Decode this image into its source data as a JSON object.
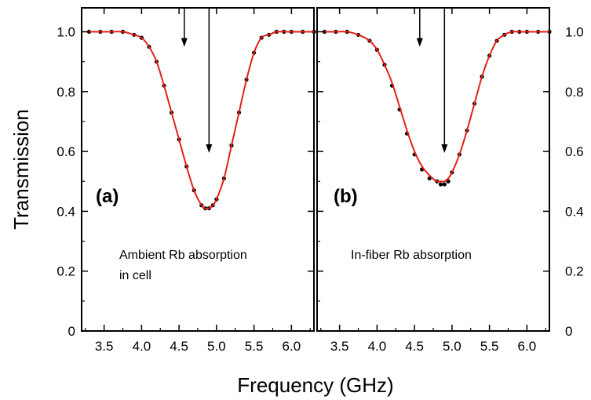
{
  "chart_data": [
    {
      "type": "scatter",
      "panel_label": "(a)",
      "annotation_lines": [
        "Ambient Rb absorption",
        "in cell"
      ],
      "xlabel": "Frequency (GHz)",
      "ylabel": "Transmission",
      "xlim": [
        3.2,
        6.3
      ],
      "ylim": [
        0,
        1.08
      ],
      "x_ticks": [
        "3.5",
        "4.0",
        "4.5",
        "5.0",
        "5.5",
        "6.0"
      ],
      "y_ticks": [
        "0",
        "0.2",
        "0.4",
        "0.6",
        "0.8",
        "1.0"
      ],
      "grid": false,
      "arrows": [
        {
          "x": 4.57,
          "y_from": 1.08,
          "y_to": 0.95
        },
        {
          "x": 4.9,
          "y_from": 1.08,
          "y_to": 0.595
        }
      ],
      "series": [
        {
          "kind": "points",
          "color": "#000000",
          "x": [
            3.3,
            3.45,
            3.6,
            3.75,
            3.9,
            4.0,
            4.1,
            4.2,
            4.3,
            4.4,
            4.5,
            4.6,
            4.7,
            4.8,
            4.85,
            4.9,
            4.95,
            5.0,
            5.1,
            5.2,
            5.3,
            5.4,
            5.5,
            5.6,
            5.7,
            5.8,
            5.9,
            6.0,
            6.15,
            6.3
          ],
          "y": [
            1.0,
            1.0,
            1.0,
            1.0,
            0.99,
            0.98,
            0.95,
            0.9,
            0.82,
            0.73,
            0.64,
            0.55,
            0.47,
            0.42,
            0.41,
            0.41,
            0.42,
            0.44,
            0.51,
            0.62,
            0.73,
            0.84,
            0.93,
            0.98,
            0.99,
            1.0,
            1.0,
            1.0,
            1.0,
            1.0
          ]
        },
        {
          "kind": "line",
          "color": "#e3201b",
          "x": [
            3.3,
            3.45,
            3.6,
            3.75,
            3.9,
            4.0,
            4.1,
            4.2,
            4.3,
            4.4,
            4.5,
            4.6,
            4.7,
            4.8,
            4.85,
            4.9,
            4.95,
            5.0,
            5.1,
            5.2,
            5.3,
            5.4,
            5.5,
            5.6,
            5.7,
            5.8,
            5.9,
            6.0,
            6.15,
            6.3
          ],
          "y": [
            1.0,
            1.0,
            1.0,
            1.0,
            0.99,
            0.98,
            0.95,
            0.9,
            0.82,
            0.73,
            0.64,
            0.55,
            0.47,
            0.42,
            0.41,
            0.41,
            0.42,
            0.44,
            0.51,
            0.62,
            0.73,
            0.84,
            0.93,
            0.98,
            0.99,
            1.0,
            1.0,
            1.0,
            1.0,
            1.0
          ]
        }
      ]
    },
    {
      "type": "scatter",
      "panel_label": "(b)",
      "annotation_lines": [
        "In-fiber Rb absorption"
      ],
      "xlabel": "Frequency (GHz)",
      "ylabel": "",
      "xlim": [
        3.2,
        6.3
      ],
      "ylim": [
        0,
        1.08
      ],
      "x_ticks": [
        "3.5",
        "4.0",
        "4.5",
        "5.0",
        "5.5",
        "6.0"
      ],
      "y_ticks": [
        "0",
        "0.2",
        "0.4",
        "0.6",
        "0.8",
        "1.0"
      ],
      "grid": false,
      "arrows": [
        {
          "x": 4.57,
          "y_from": 1.08,
          "y_to": 0.95
        },
        {
          "x": 4.9,
          "y_from": 1.08,
          "y_to": 0.595
        }
      ],
      "series": [
        {
          "kind": "points",
          "color": "#000000",
          "x": [
            3.3,
            3.45,
            3.6,
            3.75,
            3.9,
            4.0,
            4.1,
            4.2,
            4.3,
            4.4,
            4.5,
            4.6,
            4.7,
            4.8,
            4.85,
            4.9,
            4.95,
            5.0,
            5.1,
            5.2,
            5.3,
            5.4,
            5.5,
            5.6,
            5.7,
            5.8,
            5.9,
            6.0,
            6.15,
            6.3
          ],
          "y": [
            1.0,
            1.0,
            1.0,
            0.99,
            0.97,
            0.94,
            0.89,
            0.82,
            0.74,
            0.66,
            0.59,
            0.54,
            0.51,
            0.5,
            0.49,
            0.49,
            0.5,
            0.53,
            0.59,
            0.67,
            0.76,
            0.85,
            0.92,
            0.97,
            0.99,
            1.0,
            1.0,
            1.0,
            1.0,
            1.0
          ]
        },
        {
          "kind": "line",
          "color": "#e3201b",
          "x": [
            3.3,
            3.45,
            3.6,
            3.75,
            3.9,
            4.0,
            4.1,
            4.2,
            4.3,
            4.4,
            4.5,
            4.6,
            4.7,
            4.8,
            4.85,
            4.9,
            4.95,
            5.0,
            5.1,
            5.2,
            5.3,
            5.4,
            5.5,
            5.6,
            5.7,
            5.8,
            5.9,
            6.0,
            6.15,
            6.3
          ],
          "y": [
            1.0,
            1.0,
            1.0,
            0.99,
            0.97,
            0.94,
            0.89,
            0.83,
            0.75,
            0.67,
            0.6,
            0.55,
            0.52,
            0.5,
            0.5,
            0.5,
            0.51,
            0.53,
            0.59,
            0.67,
            0.76,
            0.85,
            0.92,
            0.97,
            0.99,
            1.0,
            1.0,
            1.0,
            1.0,
            1.0
          ]
        }
      ]
    }
  ],
  "right_axis_ticks": [
    "0",
    "0.2",
    "0.4",
    "0.6",
    "0.8",
    "1.0"
  ]
}
